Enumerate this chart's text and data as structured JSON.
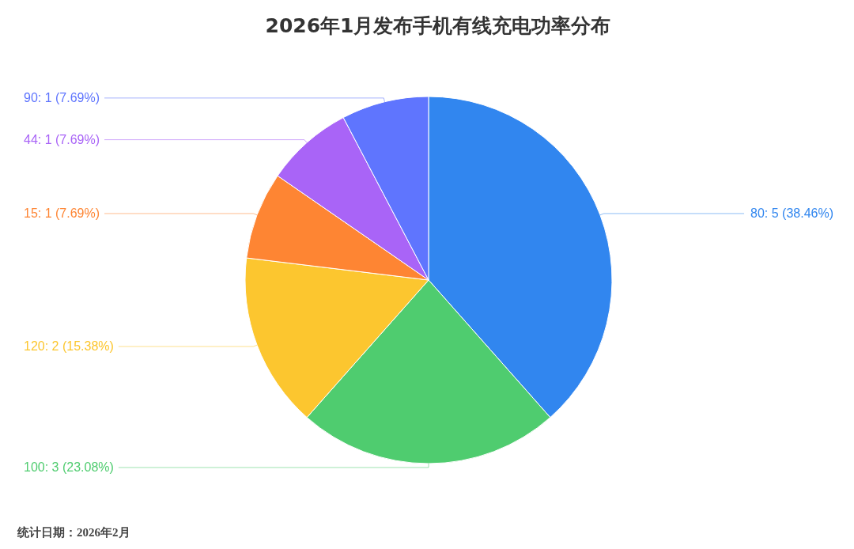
{
  "chart_data": {
    "type": "pie",
    "title": "2026年1月发布手机有线充电功率分布",
    "categories": [
      "80",
      "100",
      "120",
      "15",
      "44",
      "90"
    ],
    "values": [
      5,
      3,
      2,
      1,
      1,
      1
    ],
    "colors": [
      "#3186ef",
      "#4fcc6f",
      "#fcc62f",
      "#fe8533",
      "#a964f7",
      "#5f75fe"
    ],
    "value_labels": [
      ": 5 (38.46%)",
      ": 3 (23.08%)",
      ": 2 (15.38%)",
      ": 1 (7.69%)",
      ": 1 (7.69%)",
      ": 1 (7.69%)"
    ],
    "annotations": [
      "统计日期：2026年2月"
    ]
  }
}
